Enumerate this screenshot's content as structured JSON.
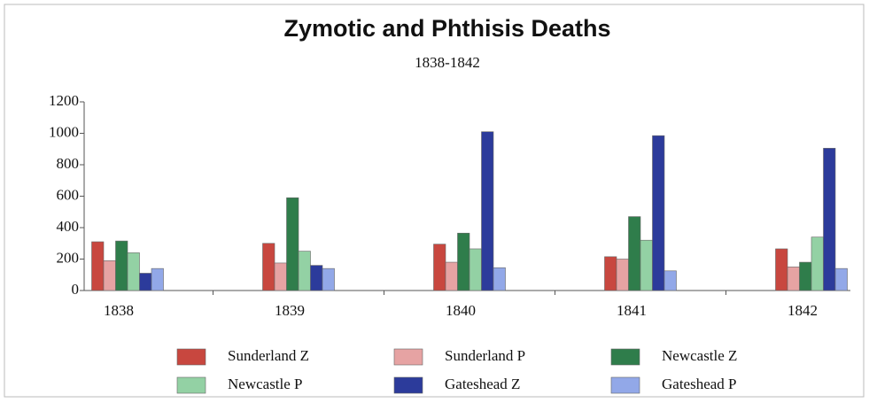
{
  "chart_data": {
    "type": "bar",
    "title": "Zymotic and Phthisis Deaths",
    "subtitle": "1838-1842",
    "categories": [
      "1838",
      "1839",
      "1840",
      "1841",
      "1842"
    ],
    "series": [
      {
        "name": "Sunderland Z",
        "color": "#c8473f",
        "values": [
          310,
          300,
          295,
          215,
          265
        ]
      },
      {
        "name": "Sunderland P",
        "color": "#e6a3a3",
        "values": [
          190,
          175,
          180,
          200,
          150
        ]
      },
      {
        "name": "Newcastle Z",
        "color": "#2f7d4b",
        "values": [
          315,
          590,
          365,
          470,
          180
        ]
      },
      {
        "name": "Newcastle P",
        "color": "#93d1a4",
        "values": [
          240,
          250,
          265,
          320,
          340
        ]
      },
      {
        "name": "Gateshead Z",
        "color": "#2c3b9b",
        "values": [
          110,
          160,
          1010,
          985,
          905
        ]
      },
      {
        "name": "Gateshead P",
        "color": "#92a8e8",
        "values": [
          140,
          140,
          145,
          125,
          140
        ]
      }
    ],
    "ylim": [
      0,
      1200
    ],
    "yticks": [
      0,
      200,
      400,
      600,
      800,
      1000,
      1200
    ]
  }
}
